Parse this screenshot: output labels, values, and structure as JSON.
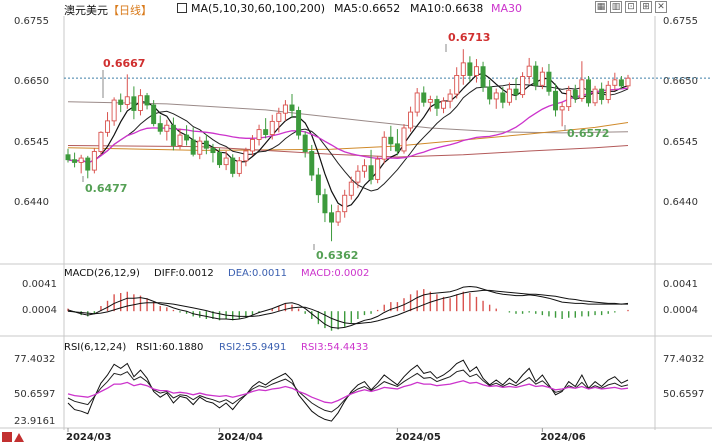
{
  "header": {
    "instrument": "澳元美元",
    "period_label": "【日线】",
    "ma_label": "MA(5,10,30,60,100,200)",
    "ma5_text": "MA5:0.6652",
    "ma10_text": "MA10:0.6638",
    "ma30_text": "MA30"
  },
  "toolbar_icons": [
    "chart-settings-icon",
    "bar-chart-icon",
    "pin-icon",
    "zoom-in-icon",
    "close-icon"
  ],
  "colors": {
    "up": "#d9534f",
    "down": "#3c9a3c",
    "price_label": "#d03030",
    "low_label": "#55a055",
    "ma5": "#111111",
    "ma10": "#222222",
    "ma30": "#cc33cc",
    "ma_long1": "#d08a2a",
    "ma_long2": "#9a8a88",
    "ma_long3": "#b35a5a",
    "dif": "#111111",
    "dea": "#111111",
    "rsi1": "#111111",
    "rsi2": "#222222",
    "rsi3": "#cc33cc",
    "current_line": "#3d7fa6"
  },
  "price_axis": {
    "ticks_left": [
      "0.6755",
      "0.6650",
      "0.6545",
      "0.6440"
    ],
    "ticks_right": [
      "0.6755",
      "0.6650",
      "0.6545",
      "0.6440"
    ]
  },
  "annotations": {
    "high_mar": "0.6667",
    "low_mar": "0.6477",
    "low_apr": "0.6362",
    "high_may": "0.6713",
    "low_jun": "0.6572"
  },
  "macd": {
    "title": "MACD(26,12,9)",
    "diff_text": "DIFF:0.0012",
    "dea_text": "DEA:0.0011",
    "macd_text": "MACD:0.0002",
    "ticks_left": [
      "0.0041",
      "0.0004"
    ],
    "ticks_right": [
      "0.0041",
      "0.0004"
    ]
  },
  "rsi": {
    "title": "RSI(6,12,24)",
    "rsi1_text": "RSI1:60.1880",
    "rsi2_text": "RSI2:55.9491",
    "rsi3_text": "RSI3:54.4433",
    "ticks_left": [
      "77.4032",
      "50.6597",
      "23.9161"
    ],
    "ticks_right": [
      "77.4032",
      "50.6597"
    ]
  },
  "x_axis": {
    "labels": [
      "2024/03",
      "2024/04",
      "2024/05",
      "2024/06"
    ]
  },
  "chart_data": {
    "type": "candlestick",
    "title": "澳元美元 日线",
    "price_range": [
      0.6335,
      0.677
    ],
    "candles": [
      {
        "o": 0.652,
        "h": 0.6531,
        "l": 0.6506,
        "c": 0.6511
      },
      {
        "o": 0.6511,
        "h": 0.6524,
        "l": 0.6497,
        "c": 0.6506
      },
      {
        "o": 0.6506,
        "h": 0.652,
        "l": 0.6486,
        "c": 0.6514
      },
      {
        "o": 0.6514,
        "h": 0.6518,
        "l": 0.6477,
        "c": 0.6492
      },
      {
        "o": 0.6492,
        "h": 0.6532,
        "l": 0.6486,
        "c": 0.6526
      },
      {
        "o": 0.6526,
        "h": 0.6563,
        "l": 0.652,
        "c": 0.6561
      },
      {
        "o": 0.6561,
        "h": 0.6598,
        "l": 0.6553,
        "c": 0.6582
      },
      {
        "o": 0.6582,
        "h": 0.6625,
        "l": 0.6573,
        "c": 0.662
      },
      {
        "o": 0.662,
        "h": 0.6632,
        "l": 0.6598,
        "c": 0.6612
      },
      {
        "o": 0.6612,
        "h": 0.6667,
        "l": 0.6604,
        "c": 0.6626
      },
      {
        "o": 0.6626,
        "h": 0.6645,
        "l": 0.6585,
        "c": 0.6601
      },
      {
        "o": 0.6601,
        "h": 0.664,
        "l": 0.6592,
        "c": 0.6628
      },
      {
        "o": 0.6628,
        "h": 0.6633,
        "l": 0.6603,
        "c": 0.6611
      },
      {
        "o": 0.6611,
        "h": 0.662,
        "l": 0.6572,
        "c": 0.6577
      },
      {
        "o": 0.6577,
        "h": 0.6592,
        "l": 0.6557,
        "c": 0.6563
      },
      {
        "o": 0.6563,
        "h": 0.6584,
        "l": 0.6546,
        "c": 0.6574
      },
      {
        "o": 0.6574,
        "h": 0.6588,
        "l": 0.6528,
        "c": 0.6537
      },
      {
        "o": 0.6537,
        "h": 0.6568,
        "l": 0.653,
        "c": 0.6556
      },
      {
        "o": 0.6556,
        "h": 0.6574,
        "l": 0.6537,
        "c": 0.6547
      },
      {
        "o": 0.6547,
        "h": 0.657,
        "l": 0.6517,
        "c": 0.6521
      },
      {
        "o": 0.6521,
        "h": 0.6553,
        "l": 0.6512,
        "c": 0.6545
      },
      {
        "o": 0.6545,
        "h": 0.6557,
        "l": 0.6521,
        "c": 0.6532
      },
      {
        "o": 0.6532,
        "h": 0.654,
        "l": 0.6506,
        "c": 0.6524
      },
      {
        "o": 0.6524,
        "h": 0.6532,
        "l": 0.6496,
        "c": 0.6502
      },
      {
        "o": 0.6502,
        "h": 0.6527,
        "l": 0.6492,
        "c": 0.6514
      },
      {
        "o": 0.6514,
        "h": 0.6521,
        "l": 0.6479,
        "c": 0.6486
      },
      {
        "o": 0.6486,
        "h": 0.6516,
        "l": 0.648,
        "c": 0.6509
      },
      {
        "o": 0.6509,
        "h": 0.6533,
        "l": 0.6499,
        "c": 0.6527
      },
      {
        "o": 0.6527,
        "h": 0.6556,
        "l": 0.6518,
        "c": 0.6548
      },
      {
        "o": 0.6548,
        "h": 0.6575,
        "l": 0.6537,
        "c": 0.6566
      },
      {
        "o": 0.6566,
        "h": 0.6587,
        "l": 0.655,
        "c": 0.6557
      },
      {
        "o": 0.6557,
        "h": 0.6593,
        "l": 0.6548,
        "c": 0.6581
      },
      {
        "o": 0.6581,
        "h": 0.6606,
        "l": 0.6561,
        "c": 0.6596
      },
      {
        "o": 0.6596,
        "h": 0.662,
        "l": 0.6582,
        "c": 0.6611
      },
      {
        "o": 0.6611,
        "h": 0.6631,
        "l": 0.6587,
        "c": 0.6601
      },
      {
        "o": 0.6601,
        "h": 0.6608,
        "l": 0.6548,
        "c": 0.6556
      },
      {
        "o": 0.6556,
        "h": 0.6563,
        "l": 0.6515,
        "c": 0.6526
      },
      {
        "o": 0.6526,
        "h": 0.6538,
        "l": 0.6472,
        "c": 0.6483
      },
      {
        "o": 0.6483,
        "h": 0.6496,
        "l": 0.6432,
        "c": 0.6447
      },
      {
        "o": 0.6447,
        "h": 0.6458,
        "l": 0.6397,
        "c": 0.6414
      },
      {
        "o": 0.6414,
        "h": 0.6429,
        "l": 0.6362,
        "c": 0.6397
      },
      {
        "o": 0.6397,
        "h": 0.6428,
        "l": 0.639,
        "c": 0.6416
      },
      {
        "o": 0.6416,
        "h": 0.6456,
        "l": 0.6405,
        "c": 0.6446
      },
      {
        "o": 0.6446,
        "h": 0.648,
        "l": 0.6438,
        "c": 0.647
      },
      {
        "o": 0.647,
        "h": 0.6501,
        "l": 0.6459,
        "c": 0.649
      },
      {
        "o": 0.649,
        "h": 0.6512,
        "l": 0.6478,
        "c": 0.65
      },
      {
        "o": 0.65,
        "h": 0.6529,
        "l": 0.6466,
        "c": 0.6475
      },
      {
        "o": 0.6475,
        "h": 0.6518,
        "l": 0.6468,
        "c": 0.6512
      },
      {
        "o": 0.6512,
        "h": 0.6563,
        "l": 0.6504,
        "c": 0.6552
      },
      {
        "o": 0.6552,
        "h": 0.6573,
        "l": 0.6527,
        "c": 0.654
      },
      {
        "o": 0.654,
        "h": 0.6567,
        "l": 0.6519,
        "c": 0.6527
      },
      {
        "o": 0.6527,
        "h": 0.6576,
        "l": 0.6522,
        "c": 0.6569
      },
      {
        "o": 0.6569,
        "h": 0.6608,
        "l": 0.6562,
        "c": 0.6598
      },
      {
        "o": 0.6598,
        "h": 0.6642,
        "l": 0.659,
        "c": 0.6633
      },
      {
        "o": 0.6633,
        "h": 0.6645,
        "l": 0.6608,
        "c": 0.6616
      },
      {
        "o": 0.6616,
        "h": 0.6628,
        "l": 0.6599,
        "c": 0.6621
      },
      {
        "o": 0.6621,
        "h": 0.6628,
        "l": 0.6591,
        "c": 0.6605
      },
      {
        "o": 0.6605,
        "h": 0.6625,
        "l": 0.6596,
        "c": 0.6618
      },
      {
        "o": 0.6618,
        "h": 0.664,
        "l": 0.6605,
        "c": 0.6631
      },
      {
        "o": 0.6631,
        "h": 0.668,
        "l": 0.6623,
        "c": 0.6665
      },
      {
        "o": 0.6665,
        "h": 0.6713,
        "l": 0.6648,
        "c": 0.6688
      },
      {
        "o": 0.6688,
        "h": 0.67,
        "l": 0.6654,
        "c": 0.6665
      },
      {
        "o": 0.6665,
        "h": 0.6695,
        "l": 0.6652,
        "c": 0.6681
      },
      {
        "o": 0.6681,
        "h": 0.669,
        "l": 0.6635,
        "c": 0.6644
      },
      {
        "o": 0.6644,
        "h": 0.6657,
        "l": 0.6612,
        "c": 0.6622
      },
      {
        "o": 0.6622,
        "h": 0.6641,
        "l": 0.6604,
        "c": 0.6633
      },
      {
        "o": 0.6633,
        "h": 0.6644,
        "l": 0.6605,
        "c": 0.6616
      },
      {
        "o": 0.6616,
        "h": 0.6652,
        "l": 0.661,
        "c": 0.664
      },
      {
        "o": 0.664,
        "h": 0.666,
        "l": 0.662,
        "c": 0.663
      },
      {
        "o": 0.663,
        "h": 0.6671,
        "l": 0.6624,
        "c": 0.6663
      },
      {
        "o": 0.6663,
        "h": 0.6697,
        "l": 0.665,
        "c": 0.6682
      },
      {
        "o": 0.6682,
        "h": 0.6691,
        "l": 0.6638,
        "c": 0.6647
      },
      {
        "o": 0.6647,
        "h": 0.668,
        "l": 0.664,
        "c": 0.6671
      },
      {
        "o": 0.6671,
        "h": 0.6686,
        "l": 0.6628,
        "c": 0.6636
      },
      {
        "o": 0.6636,
        "h": 0.665,
        "l": 0.659,
        "c": 0.6602
      },
      {
        "o": 0.6602,
        "h": 0.6616,
        "l": 0.6572,
        "c": 0.6608
      },
      {
        "o": 0.6608,
        "h": 0.6646,
        "l": 0.66,
        "c": 0.6638
      },
      {
        "o": 0.6638,
        "h": 0.6648,
        "l": 0.6615,
        "c": 0.6623
      },
      {
        "o": 0.6623,
        "h": 0.6691,
        "l": 0.6617,
        "c": 0.6657
      },
      {
        "o": 0.6657,
        "h": 0.6664,
        "l": 0.6608,
        "c": 0.6615
      },
      {
        "o": 0.6615,
        "h": 0.6646,
        "l": 0.6609,
        "c": 0.664
      },
      {
        "o": 0.664,
        "h": 0.6652,
        "l": 0.6612,
        "c": 0.6621
      },
      {
        "o": 0.6621,
        "h": 0.6655,
        "l": 0.6614,
        "c": 0.6647
      },
      {
        "o": 0.6647,
        "h": 0.667,
        "l": 0.6637,
        "c": 0.6657
      },
      {
        "o": 0.6657,
        "h": 0.6664,
        "l": 0.664,
        "c": 0.6646
      },
      {
        "o": 0.6646,
        "h": 0.6666,
        "l": 0.6641,
        "c": 0.666
      }
    ],
    "current_price": 0.666,
    "ma_long": {
      "ma60": [
        [
          0,
          0.6617
        ],
        [
          15,
          0.6613
        ],
        [
          30,
          0.6602
        ],
        [
          45,
          0.6582
        ],
        [
          55,
          0.6569
        ],
        [
          65,
          0.6562
        ],
        [
          75,
          0.656
        ],
        [
          85,
          0.6562
        ]
      ],
      "ma100": [
        [
          0,
          0.6533
        ],
        [
          20,
          0.6528
        ],
        [
          40,
          0.653
        ],
        [
          50,
          0.6536
        ],
        [
          60,
          0.6547
        ],
        [
          70,
          0.6558
        ],
        [
          80,
          0.657
        ],
        [
          85,
          0.6579
        ]
      ],
      "ma200": [
        [
          0,
          0.6537
        ],
        [
          20,
          0.6535
        ],
        [
          40,
          0.6521
        ],
        [
          50,
          0.6516
        ],
        [
          60,
          0.652
        ],
        [
          70,
          0.6527
        ],
        [
          80,
          0.6533
        ],
        [
          85,
          0.6537
        ]
      ]
    },
    "macd_range": [
      -0.0032,
      0.0048
    ],
    "macd_hist": [
      0.0004,
      -0.0002,
      -0.0006,
      -0.0008,
      -0.0004,
      0.0008,
      0.0016,
      0.0026,
      0.0028,
      0.003,
      0.0026,
      0.0024,
      0.002,
      0.0014,
      0.0008,
      0.0006,
      0.0002,
      -0.0002,
      -0.0004,
      -0.0008,
      -0.001,
      -0.0012,
      -0.0012,
      -0.0014,
      -0.0012,
      -0.0014,
      -0.0012,
      -0.001,
      -0.0006,
      -0.0002,
      0.0,
      0.0004,
      0.0008,
      0.0012,
      0.001,
      0.0004,
      -0.0004,
      -0.0012,
      -0.002,
      -0.0026,
      -0.003,
      -0.0028,
      -0.0024,
      -0.0018,
      -0.0012,
      -0.0006,
      -0.0004,
      0.0002,
      0.001,
      0.0014,
      0.0014,
      0.002,
      0.0026,
      0.0032,
      0.0034,
      0.003,
      0.0026,
      0.0022,
      0.002,
      0.0026,
      0.003,
      0.0028,
      0.0022,
      0.0016,
      0.001,
      0.0004,
      0.0,
      -0.0002,
      -0.0004,
      -0.0004,
      -0.0002,
      -0.0004,
      -0.0006,
      -0.0008,
      -0.001,
      -0.0012,
      -0.001,
      -0.001,
      -0.0008,
      -0.0008,
      -0.0006,
      -0.0006,
      -0.0004,
      -0.0002,
      0.0,
      0.0002
    ],
    "macd_dif": [
      0.0002,
      -0.0001,
      -0.0004,
      -0.0006,
      -0.0004,
      0.0001,
      0.0006,
      0.0012,
      0.0016,
      0.002,
      0.002,
      0.0021,
      0.0019,
      0.0015,
      0.0011,
      0.0009,
      0.0005,
      0.0002,
      0.0,
      -0.0004,
      -0.0006,
      -0.0008,
      -0.001,
      -0.0012,
      -0.0012,
      -0.0013,
      -0.0012,
      -0.001,
      -0.0006,
      -0.0002,
      0.0001,
      0.0004,
      0.0008,
      0.0012,
      0.0013,
      0.001,
      0.0004,
      -0.0004,
      -0.0012,
      -0.002,
      -0.0025,
      -0.0026,
      -0.0025,
      -0.0022,
      -0.0018,
      -0.0014,
      -0.0012,
      -0.0008,
      -0.0002,
      0.0003,
      0.0006,
      0.001,
      0.0015,
      0.0021,
      0.0025,
      0.0027,
      0.0028,
      0.0029,
      0.003,
      0.0033,
      0.0037,
      0.0038,
      0.0037,
      0.0034,
      0.0031,
      0.0028,
      0.0026,
      0.0025,
      0.0024,
      0.0024,
      0.0025,
      0.0024,
      0.0022,
      0.002,
      0.0017,
      0.0014,
      0.0013,
      0.0012,
      0.0012,
      0.0011,
      0.0011,
      0.0011,
      0.0011,
      0.0011,
      0.0011,
      0.0012
    ],
    "macd_dea": [
      0.0,
      -0.0001,
      -0.0002,
      -0.0003,
      -0.0004,
      -0.0003,
      -0.0001,
      0.0002,
      0.0005,
      0.0008,
      0.001,
      0.0012,
      0.0013,
      0.0013,
      0.0013,
      0.0012,
      0.0011,
      0.0009,
      0.0007,
      0.0005,
      0.0003,
      0.0001,
      -0.0002,
      -0.0004,
      -0.0006,
      -0.0007,
      -0.0008,
      -0.0008,
      -0.0008,
      -0.0007,
      -0.0005,
      -0.0003,
      0.0,
      0.0003,
      0.0005,
      0.0006,
      0.0006,
      0.0003,
      -0.0001,
      -0.0006,
      -0.0011,
      -0.0015,
      -0.0018,
      -0.0019,
      -0.0019,
      -0.0018,
      -0.0017,
      -0.0015,
      -0.0012,
      -0.0009,
      -0.0006,
      -0.0002,
      0.0002,
      0.0006,
      0.001,
      0.0014,
      0.0017,
      0.002,
      0.0022,
      0.0025,
      0.0028,
      0.003,
      0.0031,
      0.0032,
      0.0032,
      0.0031,
      0.003,
      0.0029,
      0.0028,
      0.0027,
      0.0026,
      0.0026,
      0.0025,
      0.0024,
      0.0023,
      0.0021,
      0.0019,
      0.0018,
      0.0016,
      0.0015,
      0.0014,
      0.0013,
      0.0012,
      0.0012,
      0.0011,
      0.0011
    ],
    "rsi_range": [
      10,
      100
    ],
    "rsi1": [
      38,
      30,
      28,
      25,
      45,
      62,
      72,
      85,
      80,
      86,
      70,
      78,
      68,
      52,
      45,
      50,
      38,
      46,
      44,
      36,
      45,
      40,
      38,
      32,
      38,
      30,
      40,
      48,
      58,
      64,
      60,
      66,
      70,
      74,
      66,
      48,
      38,
      28,
      22,
      18,
      16,
      26,
      40,
      52,
      60,
      64,
      54,
      62,
      72,
      66,
      60,
      70,
      78,
      84,
      74,
      76,
      68,
      72,
      78,
      86,
      90,
      76,
      82,
      68,
      60,
      66,
      60,
      68,
      62,
      72,
      80,
      64,
      72,
      60,
      48,
      52,
      64,
      58,
      72,
      56,
      64,
      58,
      66,
      70,
      62,
      66
    ],
    "rsi2": [
      44,
      40,
      38,
      36,
      46,
      56,
      64,
      74,
      72,
      76,
      66,
      70,
      64,
      54,
      50,
      52,
      44,
      48,
      47,
      42,
      47,
      44,
      42,
      39,
      42,
      37,
      43,
      48,
      55,
      59,
      57,
      61,
      64,
      67,
      62,
      52,
      45,
      38,
      33,
      29,
      27,
      33,
      42,
      50,
      55,
      58,
      53,
      58,
      64,
      61,
      58,
      64,
      69,
      74,
      68,
      69,
      64,
      67,
      70,
      76,
      78,
      70,
      73,
      65,
      59,
      62,
      58,
      62,
      59,
      64,
      69,
      61,
      65,
      58,
      51,
      53,
      59,
      56,
      63,
      55,
      59,
      56,
      60,
      62,
      58,
      60
    ],
    "rsi3": [
      49,
      47,
      46,
      45,
      48,
      52,
      56,
      61,
      61,
      63,
      59,
      61,
      59,
      55,
      53,
      53,
      50,
      51,
      50,
      48,
      50,
      48,
      47,
      46,
      47,
      45,
      47,
      49,
      52,
      54,
      53,
      55,
      56,
      58,
      56,
      52,
      49,
      45,
      42,
      39,
      38,
      41,
      45,
      49,
      52,
      54,
      52,
      54,
      57,
      56,
      55,
      58,
      60,
      63,
      61,
      61,
      59,
      60,
      61,
      63,
      65,
      62,
      63,
      60,
      58,
      59,
      57,
      58,
      57,
      59,
      61,
      58,
      59,
      57,
      54,
      55,
      57,
      56,
      58,
      55,
      57,
      55,
      56,
      57,
      55,
      56
    ],
    "x_label_positions": [
      0,
      23,
      50,
      72
    ]
  }
}
